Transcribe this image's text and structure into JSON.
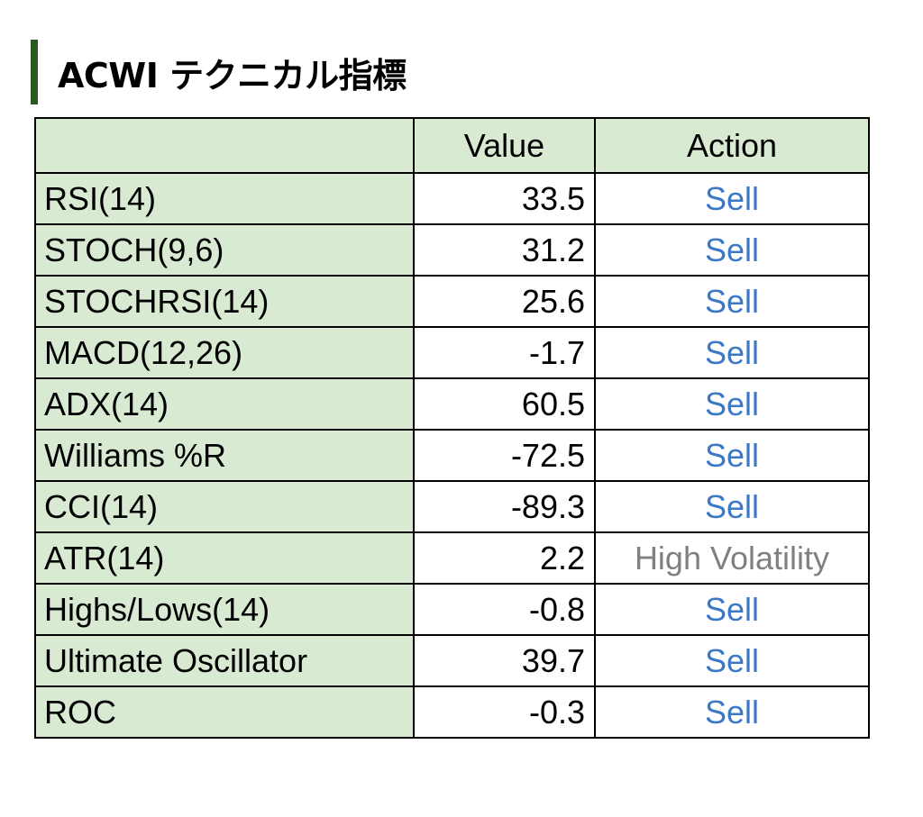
{
  "title": "ACWI テクニカル指標",
  "colors": {
    "accent_bar": "#2d5a1e",
    "header_fill": "#d9ead3",
    "sell": "#3b78c6",
    "neutral": "#808080"
  },
  "table": {
    "headers": [
      "",
      "Value",
      "Action"
    ],
    "rows": [
      {
        "name": "RSI(14)",
        "value": "33.5",
        "action": "Sell",
        "tone": "sell"
      },
      {
        "name": "STOCH(9,6)",
        "value": "31.2",
        "action": "Sell",
        "tone": "sell"
      },
      {
        "name": "STOCHRSI(14)",
        "value": "25.6",
        "action": "Sell",
        "tone": "sell"
      },
      {
        "name": "MACD(12,26)",
        "value": "-1.7",
        "action": "Sell",
        "tone": "sell"
      },
      {
        "name": "ADX(14)",
        "value": "60.5",
        "action": "Sell",
        "tone": "sell"
      },
      {
        "name": "Williams %R",
        "value": "-72.5",
        "action": "Sell",
        "tone": "sell"
      },
      {
        "name": "CCI(14)",
        "value": "-89.3",
        "action": "Sell",
        "tone": "sell"
      },
      {
        "name": "ATR(14)",
        "value": "2.2",
        "action": "High Volatility",
        "tone": "neutral"
      },
      {
        "name": "Highs/Lows(14)",
        "value": "-0.8",
        "action": "Sell",
        "tone": "sell"
      },
      {
        "name": "Ultimate Oscillator",
        "value": "39.7",
        "action": "Sell",
        "tone": "sell"
      },
      {
        "name": "ROC",
        "value": "-0.3",
        "action": "Sell",
        "tone": "sell"
      }
    ]
  }
}
